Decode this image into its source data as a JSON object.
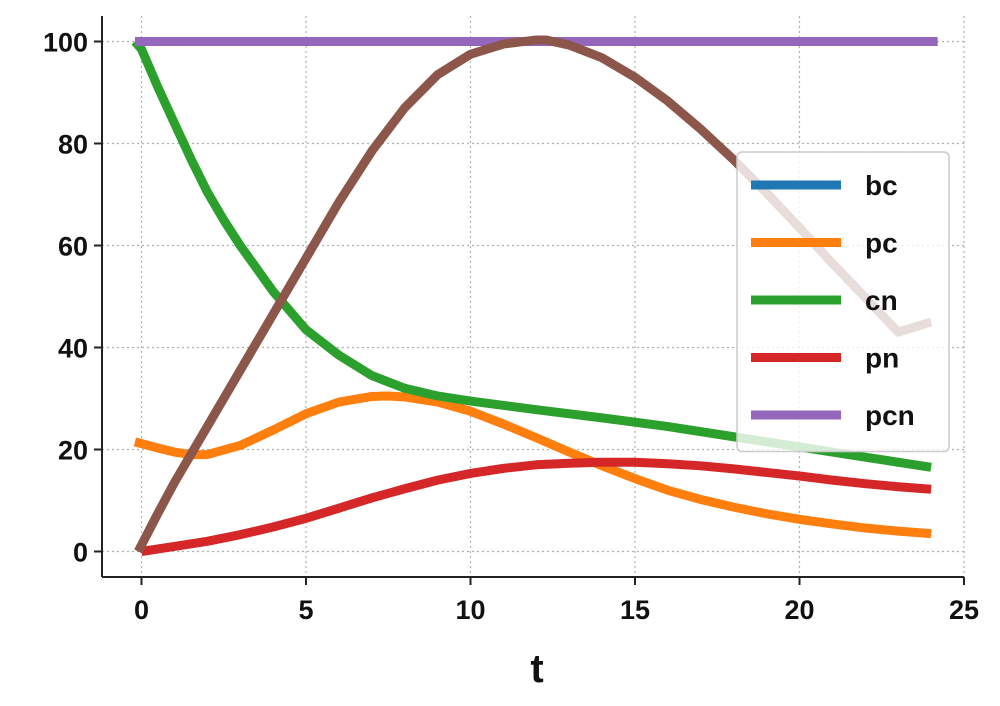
{
  "chart_data": {
    "type": "line",
    "title": "",
    "xlabel": "t",
    "ylabel": "",
    "xlim": [
      -1.2,
      25
    ],
    "ylim": [
      -5,
      105
    ],
    "xticks": [
      0,
      5,
      10,
      15,
      20,
      25
    ],
    "yticks": [
      0,
      20,
      40,
      60,
      80,
      100
    ],
    "grid": true,
    "legend_position": "center-right",
    "series": [
      {
        "name": "bc",
        "color": "#1f77b4",
        "x": [
          0,
          24
        ],
        "y": [
          100,
          100
        ]
      },
      {
        "name": "pc",
        "color": "#ff7f0e",
        "x": [
          -0.2,
          0.5,
          1,
          1.5,
          2,
          3,
          4,
          5,
          6,
          7,
          7.5,
          8,
          9,
          10,
          11,
          12,
          13,
          14,
          15,
          16,
          17,
          18,
          19,
          20,
          21,
          22,
          23,
          24
        ],
        "y": [
          21.5,
          20.3,
          19.5,
          19.0,
          19.0,
          20.8,
          23.8,
          27.0,
          29.3,
          30.4,
          30.5,
          30.3,
          29.3,
          27.5,
          25.0,
          22.3,
          19.5,
          16.8,
          14.3,
          12.0,
          10.2,
          8.7,
          7.4,
          6.3,
          5.4,
          4.6,
          4.0,
          3.5
        ]
      },
      {
        "name": "cn",
        "color": "#2ca02c",
        "x": [
          -0.2,
          0,
          0.5,
          1,
          1.5,
          2,
          2.5,
          3,
          4,
          5,
          6,
          7,
          8,
          9,
          10,
          12,
          14,
          16,
          18,
          20,
          22,
          24
        ],
        "y": [
          100,
          98.5,
          91.0,
          84.0,
          77.0,
          70.5,
          65.0,
          60.0,
          51.0,
          43.5,
          38.5,
          34.5,
          32.0,
          30.5,
          29.5,
          27.8,
          26.2,
          24.5,
          22.5,
          20.5,
          18.5,
          16.5
        ]
      },
      {
        "name": "pn",
        "color": "#d62728",
        "x": [
          0,
          1,
          2,
          3,
          4,
          5,
          6,
          7,
          8,
          9,
          10,
          11,
          12,
          13,
          14,
          15,
          16,
          17,
          18,
          19,
          20,
          21,
          22,
          23,
          24
        ],
        "y": [
          0,
          1.0,
          2.0,
          3.3,
          4.8,
          6.5,
          8.5,
          10.5,
          12.3,
          14.0,
          15.3,
          16.3,
          17.0,
          17.3,
          17.5,
          17.5,
          17.2,
          16.8,
          16.2,
          15.5,
          14.8,
          14.0,
          13.3,
          12.7,
          12.2
        ]
      },
      {
        "name": "pcn",
        "color": "#9467bd",
        "x": [
          -0.2,
          24.2
        ],
        "y": [
          100,
          100
        ]
      },
      {
        "name": "",
        "color": "#8c564b",
        "x": [
          -0.1,
          0.5,
          1,
          2,
          3,
          4,
          5,
          6,
          7,
          8,
          9,
          10,
          11,
          12,
          12.3,
          13,
          14,
          15,
          16,
          17,
          18,
          19,
          20,
          21,
          22,
          23,
          24
        ],
        "y": [
          0,
          7.5,
          13.5,
          24.5,
          35.5,
          46.5,
          57.5,
          68.5,
          78.5,
          87.0,
          93.5,
          97.5,
          99.5,
          100.3,
          100.3,
          99.3,
          96.8,
          93.0,
          88.3,
          82.8,
          76.8,
          70.3,
          63.5,
          56.5,
          49.8,
          43.0,
          45.0
        ]
      }
    ]
  }
}
